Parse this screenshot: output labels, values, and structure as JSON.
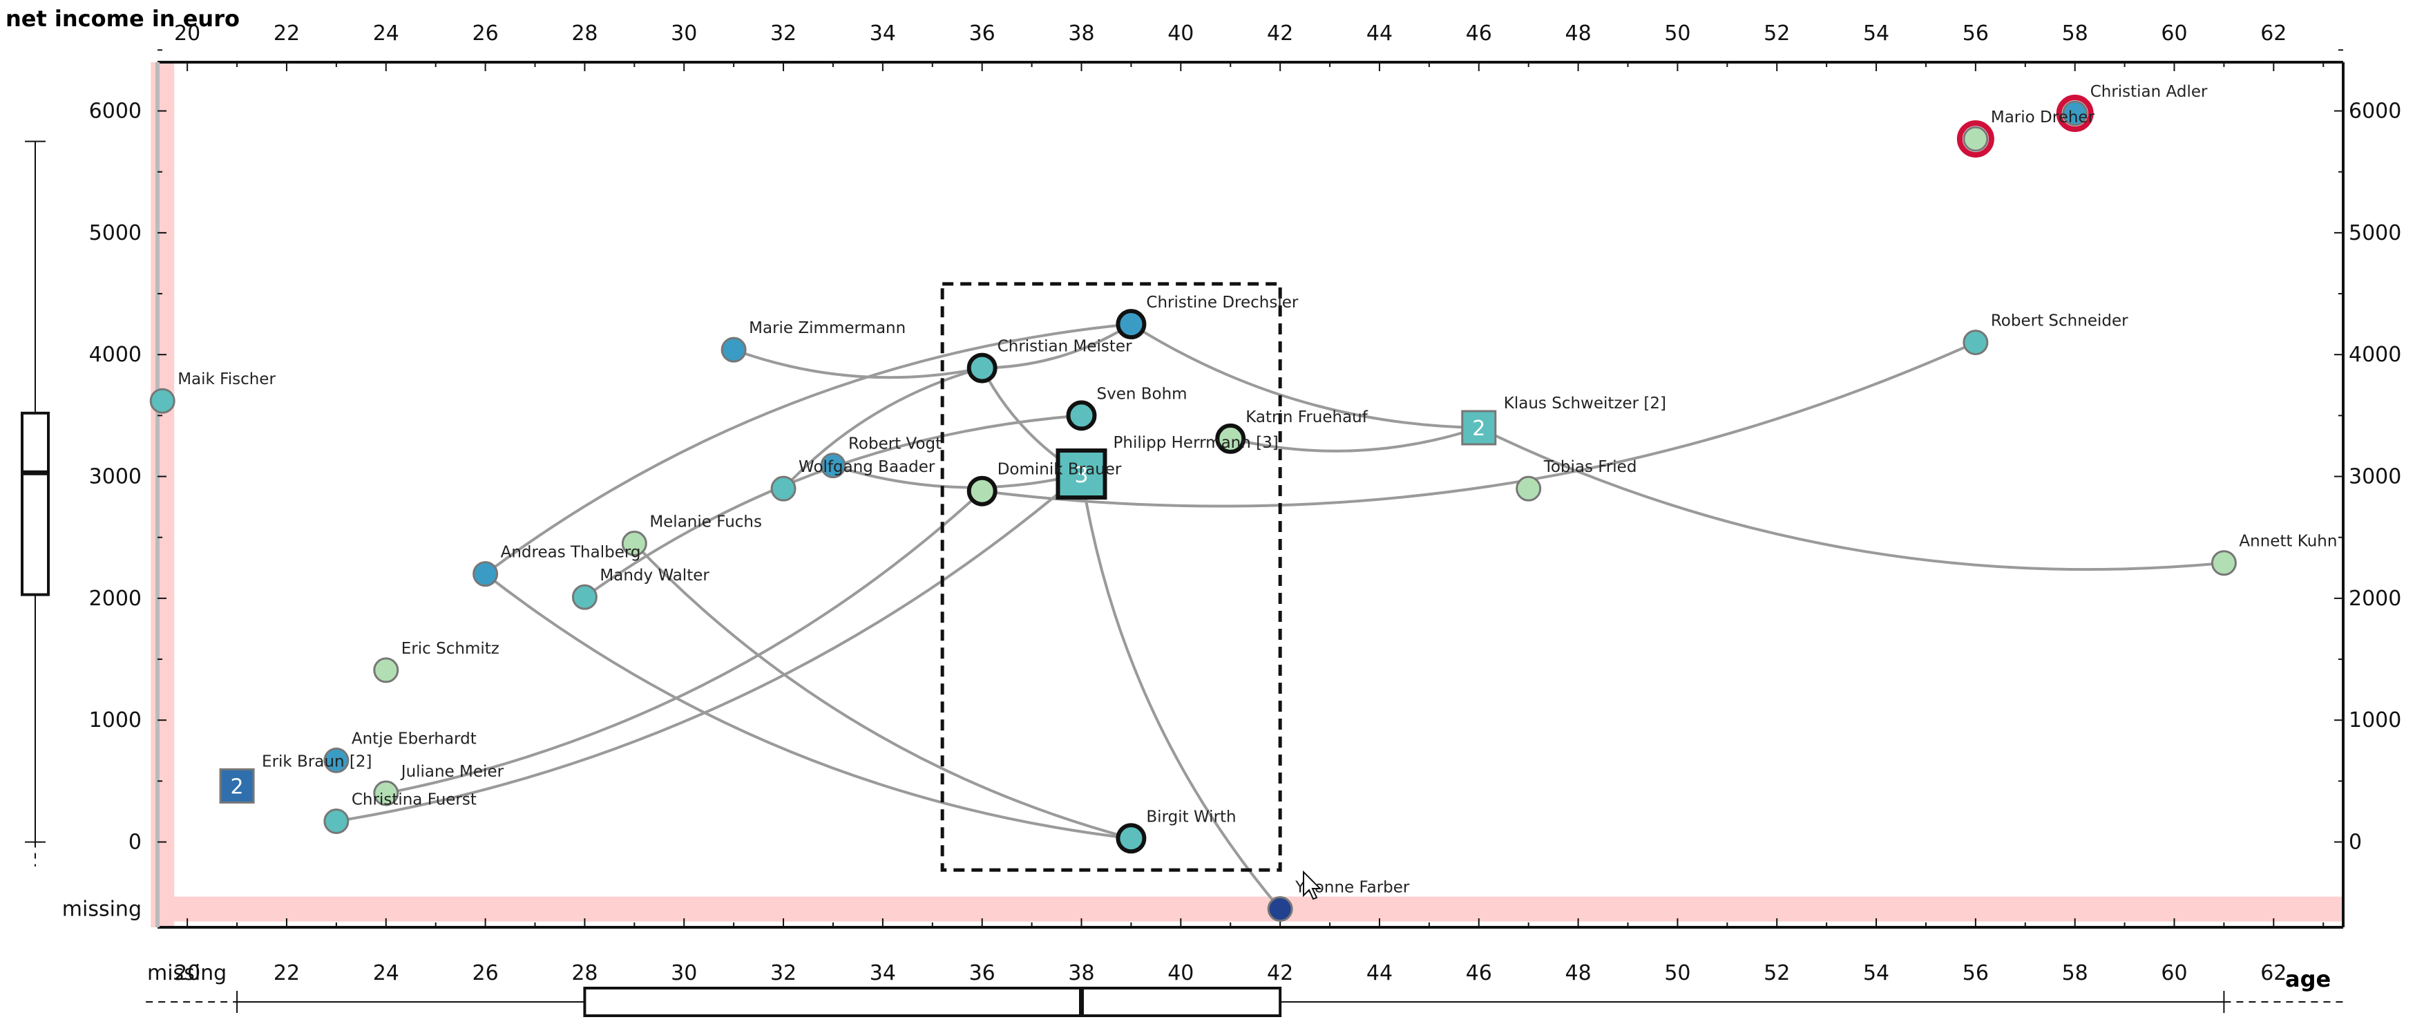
{
  "chart_data": {
    "type": "scatter",
    "title": "",
    "xlabel": "age",
    "ylabel": "net income in euro",
    "xlim": [
      19.4,
      63.4
    ],
    "ylim": [
      -700,
      6400
    ],
    "x_ticks": [
      20,
      22,
      24,
      26,
      28,
      30,
      32,
      34,
      36,
      38,
      40,
      42,
      44,
      46,
      48,
      50,
      52,
      54,
      56,
      58,
      60,
      62
    ],
    "y_ticks": [
      0,
      1000,
      2000,
      3000,
      4000,
      5000,
      6000
    ],
    "missing_label": "missing",
    "missing_x_row_y": -550,
    "missing_y_col_x": 19.5,
    "points": [
      {
        "name": "Maik Fischer",
        "x": null,
        "y": 3620,
        "color": "#5cbfbd",
        "highlight": false,
        "selected": false
      },
      {
        "name": "Christian Adler",
        "x": 58,
        "y": 5980,
        "color": "#3a9cc4",
        "highlight": true,
        "selected": false
      },
      {
        "name": "Mario Dreher",
        "x": 56,
        "y": 5770,
        "color": "#b2deb3",
        "highlight": true,
        "selected": false
      },
      {
        "name": "Marie Zimmermann",
        "x": 31,
        "y": 4040,
        "color": "#3a9cc4",
        "highlight": false,
        "selected": false
      },
      {
        "name": "Christian Meister",
        "x": 36,
        "y": 3890,
        "color": "#5cbfbd",
        "highlight": false,
        "selected": true
      },
      {
        "name": "Christine Drechsler",
        "x": 39,
        "y": 4250,
        "color": "#3a9cc4",
        "highlight": false,
        "selected": true
      },
      {
        "name": "Sven Bohm",
        "x": 38,
        "y": 3500,
        "color": "#5cbfbd",
        "highlight": false,
        "selected": true
      },
      {
        "name": "Katrin Fruehauf",
        "x": 41,
        "y": 3310,
        "color": "#b2deb3",
        "highlight": false,
        "selected": true
      },
      {
        "name": "Robert Schneider",
        "x": 56,
        "y": 4100,
        "color": "#5cbfbd",
        "highlight": false,
        "selected": false
      },
      {
        "name": "Robert Vogt",
        "x": 33,
        "y": 3090,
        "color": "#3a9cc4",
        "highlight": false,
        "selected": false
      },
      {
        "name": "Wolfgang Baader",
        "x": 32,
        "y": 2900,
        "color": "#5cbfbd",
        "highlight": false,
        "selected": false
      },
      {
        "name": "Dominik Brauer",
        "x": 36,
        "y": 2880,
        "color": "#b2deb3",
        "highlight": false,
        "selected": true
      },
      {
        "name": "Tobias Fried",
        "x": 47,
        "y": 2900,
        "color": "#b2deb3",
        "highlight": false,
        "selected": false
      },
      {
        "name": "Melanie Fuchs",
        "x": 29,
        "y": 2450,
        "color": "#b2deb3",
        "highlight": false,
        "selected": false
      },
      {
        "name": "Andreas Thalberg",
        "x": 26,
        "y": 2200,
        "color": "#3a9cc4",
        "highlight": false,
        "selected": false
      },
      {
        "name": "Mandy Walter",
        "x": 28,
        "y": 2010,
        "color": "#5cbfbd",
        "highlight": false,
        "selected": false
      },
      {
        "name": "Annett Kuhn",
        "x": 61,
        "y": 2290,
        "color": "#b2deb3",
        "highlight": false,
        "selected": false
      },
      {
        "name": "Eric Schmitz",
        "x": 24,
        "y": 1410,
        "color": "#b2deb3",
        "highlight": false,
        "selected": false
      },
      {
        "name": "Antje Eberhardt",
        "x": 23,
        "y": 670,
        "color": "#3a9cc4",
        "highlight": false,
        "selected": false
      },
      {
        "name": "Juliane Meier",
        "x": 24,
        "y": 400,
        "color": "#b2deb3",
        "highlight": false,
        "selected": false
      },
      {
        "name": "Christina Fuerst",
        "x": 23,
        "y": 170,
        "color": "#5cbfbd",
        "highlight": false,
        "selected": false
      },
      {
        "name": "Birgit Wirth",
        "x": 39,
        "y": 30,
        "color": "#5cbfbd",
        "highlight": false,
        "selected": true
      },
      {
        "name": "Yvonne Farber",
        "x": 42,
        "y": null,
        "color": "#22418f",
        "highlight": false,
        "selected": false
      }
    ],
    "clusters": [
      {
        "name": "Philipp Herrmann [3]",
        "count": "3",
        "x": 38,
        "y": 3020,
        "color": "#5cbfbd",
        "selected": true
      },
      {
        "name": "Klaus Schweitzer [2]",
        "count": "2",
        "x": 46,
        "y": 3400,
        "color": "#5cbfbd",
        "selected": false
      },
      {
        "name": "Erik Braun [2]",
        "count": "2",
        "x": 21,
        "y": 460,
        "color": "#2f6fae",
        "selected": false
      }
    ],
    "links": [
      {
        "from": "Marie Zimmermann",
        "to": "Christian Meister"
      },
      {
        "from": "Christian Meister",
        "to": "Christine Drechsler"
      },
      {
        "from": "Christian Meister",
        "to": "Wolfgang Baader"
      },
      {
        "from": "Christian Meister",
        "to": "Philipp Herrmann [3]"
      },
      {
        "from": "Christine Drechsler",
        "to": "Andreas Thalberg"
      },
      {
        "from": "Christine Drechsler",
        "to": "Klaus Schweitzer [2]"
      },
      {
        "from": "Sven Bohm",
        "to": "Mandy Walter"
      },
      {
        "from": "Robert Vogt",
        "to": "Philipp Herrmann [3]"
      },
      {
        "from": "Dominik Brauer",
        "to": "Robert Schneider"
      },
      {
        "from": "Katrin Fruehauf",
        "to": "Klaus Schweitzer [2]"
      },
      {
        "from": "Klaus Schweitzer [2]",
        "to": "Annett Kuhn"
      },
      {
        "from": "Melanie Fuchs",
        "to": "Birgit Wirth"
      },
      {
        "from": "Andreas Thalberg",
        "to": "Birgit Wirth"
      },
      {
        "from": "Juliane Meier",
        "to": "Dominik Brauer"
      },
      {
        "from": "Christina Fuerst",
        "to": "Philipp Herrmann [3]"
      },
      {
        "from": "Philipp Herrmann [3]",
        "to": "Yvonne Farber"
      }
    ],
    "selection_box": {
      "x_min": 35.2,
      "x_max": 42.0,
      "y_min": -230,
      "y_max": 4580
    },
    "boxplot_x": {
      "whisker_low": 21,
      "q1": 28,
      "median": 38,
      "q3": 42,
      "whisker_high": 61,
      "range_low": 20,
      "range_high": 63
    },
    "boxplot_y": {
      "whisker_low": 0,
      "q1": 2030,
      "median": 3030,
      "q3": 3520,
      "whisker_high": 5750,
      "range_low": -200,
      "range_high": 5750
    },
    "colors": {
      "axis": "#111111",
      "link": "#9a9a9a",
      "missing_band": "#ffd0d0",
      "highlight_ring": "#d0103a",
      "selected_ring": "#111111",
      "dash_box": "#111111"
    }
  }
}
